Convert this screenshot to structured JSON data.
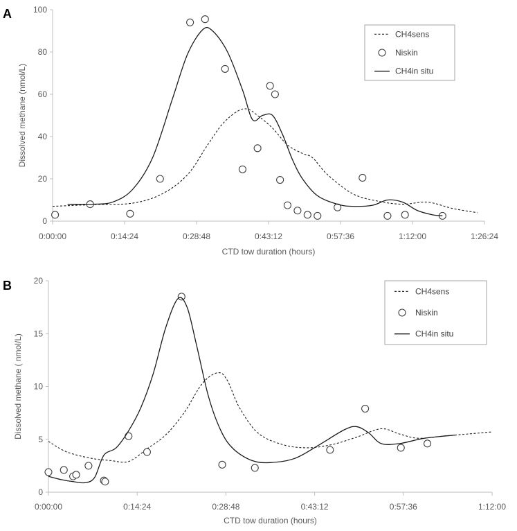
{
  "chart_data": [
    {
      "panel": "A",
      "type": "line",
      "title": "",
      "xlabel": "CTD tow duration (hours)",
      "ylabel": "Dissolved methane  (nmol/L)",
      "x_unit": "minutes",
      "xlim": [
        0,
        86.4
      ],
      "ylim": [
        0,
        100
      ],
      "x_ticks": [
        {
          "value": 0,
          "label": "0:00:00"
        },
        {
          "value": 14.4,
          "label": "0:14:24"
        },
        {
          "value": 28.8,
          "label": "0:28:48"
        },
        {
          "value": 43.2,
          "label": "0:43:12"
        },
        {
          "value": 57.6,
          "label": "0:57:36"
        },
        {
          "value": 72,
          "label": "1:12:00"
        },
        {
          "value": 86.4,
          "label": "1:26:24"
        }
      ],
      "y_ticks": [
        {
          "value": 0,
          "label": "0"
        },
        {
          "value": 20,
          "label": "20"
        },
        {
          "value": 40,
          "label": "40"
        },
        {
          "value": 60,
          "label": "60"
        },
        {
          "value": 80,
          "label": "80"
        },
        {
          "value": 100,
          "label": "100"
        }
      ],
      "legend": [
        {
          "key": "sens",
          "label": "CH4sens"
        },
        {
          "key": "niskin",
          "label": "Niskin"
        },
        {
          "key": "insitu",
          "label": "CH4in situ"
        }
      ],
      "legend_position": "top-right",
      "series": [
        {
          "name": "CH4sens",
          "style": "dashed",
          "x": [
            0,
            8,
            16,
            22,
            27,
            31,
            34,
            37,
            39,
            41,
            44,
            47,
            50,
            52,
            55,
            60,
            65,
            70,
            75,
            80,
            85
          ],
          "y": [
            7,
            7.8,
            8.5,
            13,
            22,
            36,
            46,
            52,
            53,
            50,
            44,
            36,
            32,
            30,
            22,
            13,
            9.5,
            8,
            9,
            6,
            4
          ]
        },
        {
          "name": "Niskin",
          "style": "markers",
          "x": [
            0.5,
            7.5,
            15.5,
            21.5,
            27.5,
            30.5,
            34.5,
            38,
            41,
            43.5,
            44.5,
            45.5,
            47,
            49,
            51,
            53,
            57,
            62,
            67,
            70.5,
            78
          ],
          "y": [
            3,
            8,
            3.5,
            20,
            94,
            95.5,
            72,
            24.5,
            34.5,
            64,
            60,
            19.5,
            7.5,
            5,
            3,
            2.5,
            6.5,
            20.5,
            2.5,
            3,
            2.5
          ]
        },
        {
          "name": "CH4in situ",
          "style": "solid",
          "x": [
            3,
            8,
            12,
            16,
            20,
            24,
            27,
            30,
            32,
            35,
            38,
            40,
            42,
            44,
            46,
            48,
            50,
            53,
            57,
            60,
            64,
            67,
            70,
            73,
            76,
            78
          ],
          "y": [
            8,
            8,
            9,
            15,
            30,
            58,
            79,
            90.5,
            90,
            80,
            62,
            48,
            50,
            50,
            41,
            29,
            20,
            12,
            8,
            7,
            7.5,
            10,
            9,
            5,
            3,
            2.5
          ]
        }
      ]
    },
    {
      "panel": "B",
      "type": "line",
      "title": "",
      "xlabel": "CTD tow duration (hours)",
      "ylabel": "Dissolved methane  ( nmol/L)",
      "x_unit": "minutes",
      "xlim": [
        0,
        72
      ],
      "ylim": [
        0,
        20
      ],
      "x_ticks": [
        {
          "value": 0,
          "label": "0:00:00"
        },
        {
          "value": 14.4,
          "label": "0:14:24"
        },
        {
          "value": 28.8,
          "label": "0:28:48"
        },
        {
          "value": 43.2,
          "label": "0:43:12"
        },
        {
          "value": 57.6,
          "label": "0:57:36"
        },
        {
          "value": 72,
          "label": "1:12:00"
        }
      ],
      "y_ticks": [
        {
          "value": 0,
          "label": "0"
        },
        {
          "value": 5,
          "label": "5"
        },
        {
          "value": 10,
          "label": "10"
        },
        {
          "value": 15,
          "label": "15"
        },
        {
          "value": 20,
          "label": "20"
        }
      ],
      "legend": [
        {
          "key": "sens",
          "label": "CH4sens"
        },
        {
          "key": "niskin",
          "label": "Niskin"
        },
        {
          "key": "insitu",
          "label": "CH4in situ"
        }
      ],
      "legend_position": "top-right",
      "series": [
        {
          "name": "CH4sens",
          "style": "dashed",
          "x": [
            0,
            3,
            7,
            10,
            13,
            16,
            19,
            22,
            25,
            27.5,
            29,
            31,
            34,
            38,
            42,
            46,
            50,
            54,
            57,
            60,
            64,
            68,
            72
          ],
          "y": [
            4.8,
            3.8,
            3.2,
            3.0,
            2.9,
            4.1,
            5.4,
            7.5,
            10.3,
            11.3,
            10.6,
            8.0,
            5.6,
            4.5,
            4.2,
            4.5,
            5.2,
            6.0,
            5.5,
            5.1,
            5.3,
            5.5,
            5.7
          ]
        },
        {
          "name": "Niskin",
          "style": "markers",
          "x": [
            0,
            2.5,
            4,
            4.5,
            6.5,
            9,
            9.2,
            13,
            16,
            21.6,
            28.2,
            33.5,
            45.7,
            51.4,
            57.2,
            61.5
          ],
          "y": [
            1.9,
            2.1,
            1.5,
            1.65,
            2.5,
            1.1,
            1.0,
            5.3,
            3.8,
            18.5,
            2.6,
            2.3,
            4.0,
            7.9,
            4.2,
            4.6
          ]
        },
        {
          "name": "CH4in situ",
          "style": "solid",
          "x": [
            0,
            2,
            4,
            6,
            7.5,
            9,
            11,
            13,
            15,
            17,
            19,
            21,
            22.5,
            24,
            26,
            28,
            30,
            33,
            36,
            40,
            44,
            48,
            50,
            52,
            54,
            57,
            61,
            66
          ],
          "y": [
            1.5,
            1.2,
            1.0,
            0.9,
            1.4,
            3.5,
            4.2,
            5.8,
            8.0,
            11.2,
            15.5,
            18.3,
            17.5,
            14.0,
            9.0,
            5.8,
            4.1,
            3.0,
            2.8,
            3.2,
            4.5,
            5.9,
            6.2,
            5.6,
            4.6,
            4.6,
            5.1,
            5.4
          ]
        }
      ]
    }
  ]
}
